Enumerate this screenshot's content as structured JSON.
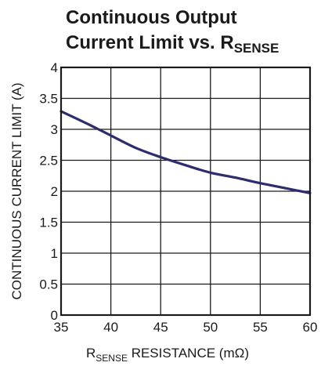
{
  "chart_data": {
    "type": "line",
    "title": {
      "line1": "Continuous Output",
      "line2_main": "Current Limit vs. R",
      "line2_sub": "SENSE"
    },
    "xlabel": {
      "main": "R",
      "sub": "SENSE",
      "rest": " RESISTANCE (mΩ)"
    },
    "ylabel": "CONTINUOUS CURRENT LIMIT (A)",
    "xlim": [
      35,
      60
    ],
    "ylim": [
      0,
      4
    ],
    "x_ticks": [
      "35",
      "40",
      "45",
      "50",
      "55",
      "60"
    ],
    "y_ticks": [
      "0",
      "0.5",
      "1",
      "1.5",
      "2",
      "2.5",
      "3",
      "3.5",
      "4"
    ],
    "grid": true,
    "series": [
      {
        "color": "#2b2d6e",
        "x": [
          35,
          37.5,
          40,
          42.5,
          45,
          47.5,
          50,
          52.5,
          55,
          57.5,
          60
        ],
        "y": [
          3.29,
          3.1,
          2.9,
          2.7,
          2.55,
          2.42,
          2.3,
          2.22,
          2.13,
          2.05,
          1.97
        ]
      }
    ]
  }
}
